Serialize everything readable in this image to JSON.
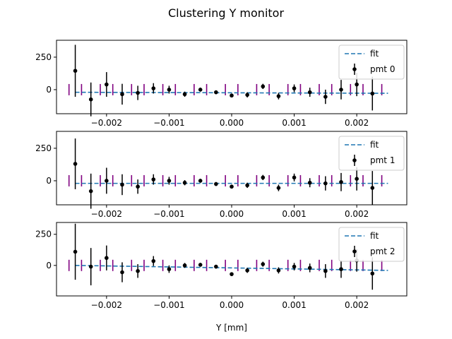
{
  "figure": {
    "title": "Clustering Y monitor",
    "xlabel": "Y [mm]"
  },
  "colors": {
    "fit": "#1f77b4",
    "points": "#000000",
    "ticks_marker": "#800080"
  },
  "chart_data": [
    {
      "type": "scatter",
      "xlim": [
        -0.0028,
        0.0028
      ],
      "ylim": [
        -185,
        380
      ],
      "xticks": [
        -0.002,
        -0.001,
        0.0,
        0.001,
        0.002
      ],
      "xtick_labels": [
        "−0.002",
        "−0.001",
        "0.000",
        "0.001",
        "0.002"
      ],
      "yticks": [
        0,
        250
      ],
      "ytick_labels": [
        "0",
        "250"
      ],
      "legend_loc": "upper-right",
      "fit": {
        "name": "fit",
        "x": [
          -0.0025,
          0.0025
        ],
        "y": [
          -20,
          -28
        ]
      },
      "marker_x": [
        -0.0026,
        -0.0024,
        -0.0021,
        -0.0019,
        -0.0016,
        -0.0014,
        -0.0011,
        -0.0009,
        -0.0006,
        -0.0004,
        -0.0001,
        0.0001,
        0.0004,
        0.0006,
        0.0009,
        0.0011,
        0.0014,
        0.0016,
        0.0019,
        0.0021,
        0.0024
      ],
      "marker_y": 0,
      "series": [
        {
          "name": "pmt 0",
          "x": [
            -0.0025,
            -0.00225,
            -0.002,
            -0.00175,
            -0.0015,
            -0.00125,
            -0.001,
            -0.00075,
            -0.0005,
            -0.00025,
            0.0,
            0.00025,
            0.0005,
            0.00075,
            0.001,
            0.00125,
            0.0015,
            0.00175,
            0.002,
            0.00225
          ],
          "y": [
            145,
            -75,
            40,
            -35,
            -25,
            10,
            0,
            -35,
            0,
            -20,
            -45,
            -40,
            25,
            -50,
            10,
            -20,
            -55,
            0,
            40,
            -30
          ],
          "err": [
            200,
            130,
            95,
            80,
            55,
            40,
            30,
            20,
            15,
            15,
            15,
            20,
            20,
            25,
            30,
            35,
            55,
            75,
            90,
            130
          ]
        }
      ]
    },
    {
      "type": "scatter",
      "xlim": [
        -0.0028,
        0.0028
      ],
      "ylim": [
        -185,
        380
      ],
      "xticks": [
        -0.002,
        -0.001,
        0.0,
        0.001,
        0.002
      ],
      "xtick_labels": [
        "−0.002",
        "−0.001",
        "0.000",
        "0.001",
        "0.002"
      ],
      "yticks": [
        0,
        250
      ],
      "ytick_labels": [
        "0",
        "250"
      ],
      "legend_loc": "upper-right",
      "fit": {
        "name": "fit",
        "x": [
          -0.0025,
          0.0025
        ],
        "y": [
          -20,
          -20
        ]
      },
      "marker_x": [
        -0.0026,
        -0.0024,
        -0.0021,
        -0.0019,
        -0.0016,
        -0.0014,
        -0.0011,
        -0.0009,
        -0.0006,
        -0.0004,
        -0.0001,
        0.0001,
        0.0004,
        0.0006,
        0.0009,
        0.0011,
        0.0014,
        0.0016,
        0.0019,
        0.0021,
        0.0024
      ],
      "marker_y": 0,
      "series": [
        {
          "name": "pmt 1",
          "x": [
            -0.0025,
            -0.00225,
            -0.002,
            -0.00175,
            -0.0015,
            -0.00125,
            -0.001,
            -0.00075,
            -0.0005,
            -0.00025,
            0.0,
            0.00025,
            0.0005,
            0.00075,
            0.001,
            0.00125,
            0.0015,
            0.00175,
            0.002,
            0.00225
          ],
          "y": [
            130,
            -80,
            0,
            -30,
            -45,
            10,
            0,
            -15,
            0,
            -25,
            -45,
            -35,
            25,
            -55,
            25,
            -15,
            -20,
            -10,
            15,
            -55
          ],
          "err": [
            195,
            135,
            100,
            80,
            55,
            40,
            30,
            20,
            15,
            15,
            15,
            20,
            20,
            25,
            30,
            35,
            55,
            70,
            90,
            130
          ]
        }
      ]
    },
    {
      "type": "scatter",
      "xlim": [
        -0.0028,
        0.0028
      ],
      "ylim": [
        -245,
        345
      ],
      "xticks": [
        -0.002,
        -0.001,
        0.0,
        0.001,
        0.002
      ],
      "xtick_labels": [
        "−0.002",
        "−0.001",
        "0.000",
        "0.001",
        "0.002"
      ],
      "yticks": [
        0,
        250
      ],
      "ytick_labels": [
        "0",
        "250"
      ],
      "legend_loc": "upper-right",
      "fit": {
        "name": "fit",
        "x": [
          -0.0025,
          0.0025
        ],
        "y": [
          0,
          -40
        ]
      },
      "marker_x": [
        -0.0026,
        -0.0024,
        -0.0021,
        -0.0019,
        -0.0016,
        -0.0014,
        -0.0011,
        -0.0009,
        -0.0006,
        -0.0004,
        -0.0001,
        0.0001,
        0.0004,
        0.0006,
        0.0009,
        0.0011,
        0.0014,
        0.0016,
        0.0019,
        0.0021,
        0.0024
      ],
      "marker_y": 0,
      "series": [
        {
          "name": "pmt 2",
          "x": [
            -0.0025,
            -0.00225,
            -0.002,
            -0.00175,
            -0.0015,
            -0.00125,
            -0.001,
            -0.00075,
            -0.0005,
            -0.00025,
            0.0,
            0.00025,
            0.0005,
            0.00075,
            0.001,
            0.00125,
            0.0015,
            0.00175,
            0.002,
            0.00225
          ],
          "y": [
            110,
            -10,
            60,
            -55,
            -45,
            35,
            -30,
            0,
            5,
            -10,
            -70,
            -40,
            10,
            -40,
            -10,
            -20,
            -45,
            -30,
            40,
            -65
          ],
          "err": [
            225,
            150,
            100,
            80,
            55,
            40,
            30,
            20,
            15,
            15,
            15,
            20,
            20,
            25,
            30,
            35,
            55,
            70,
            90,
            130
          ]
        }
      ]
    }
  ]
}
